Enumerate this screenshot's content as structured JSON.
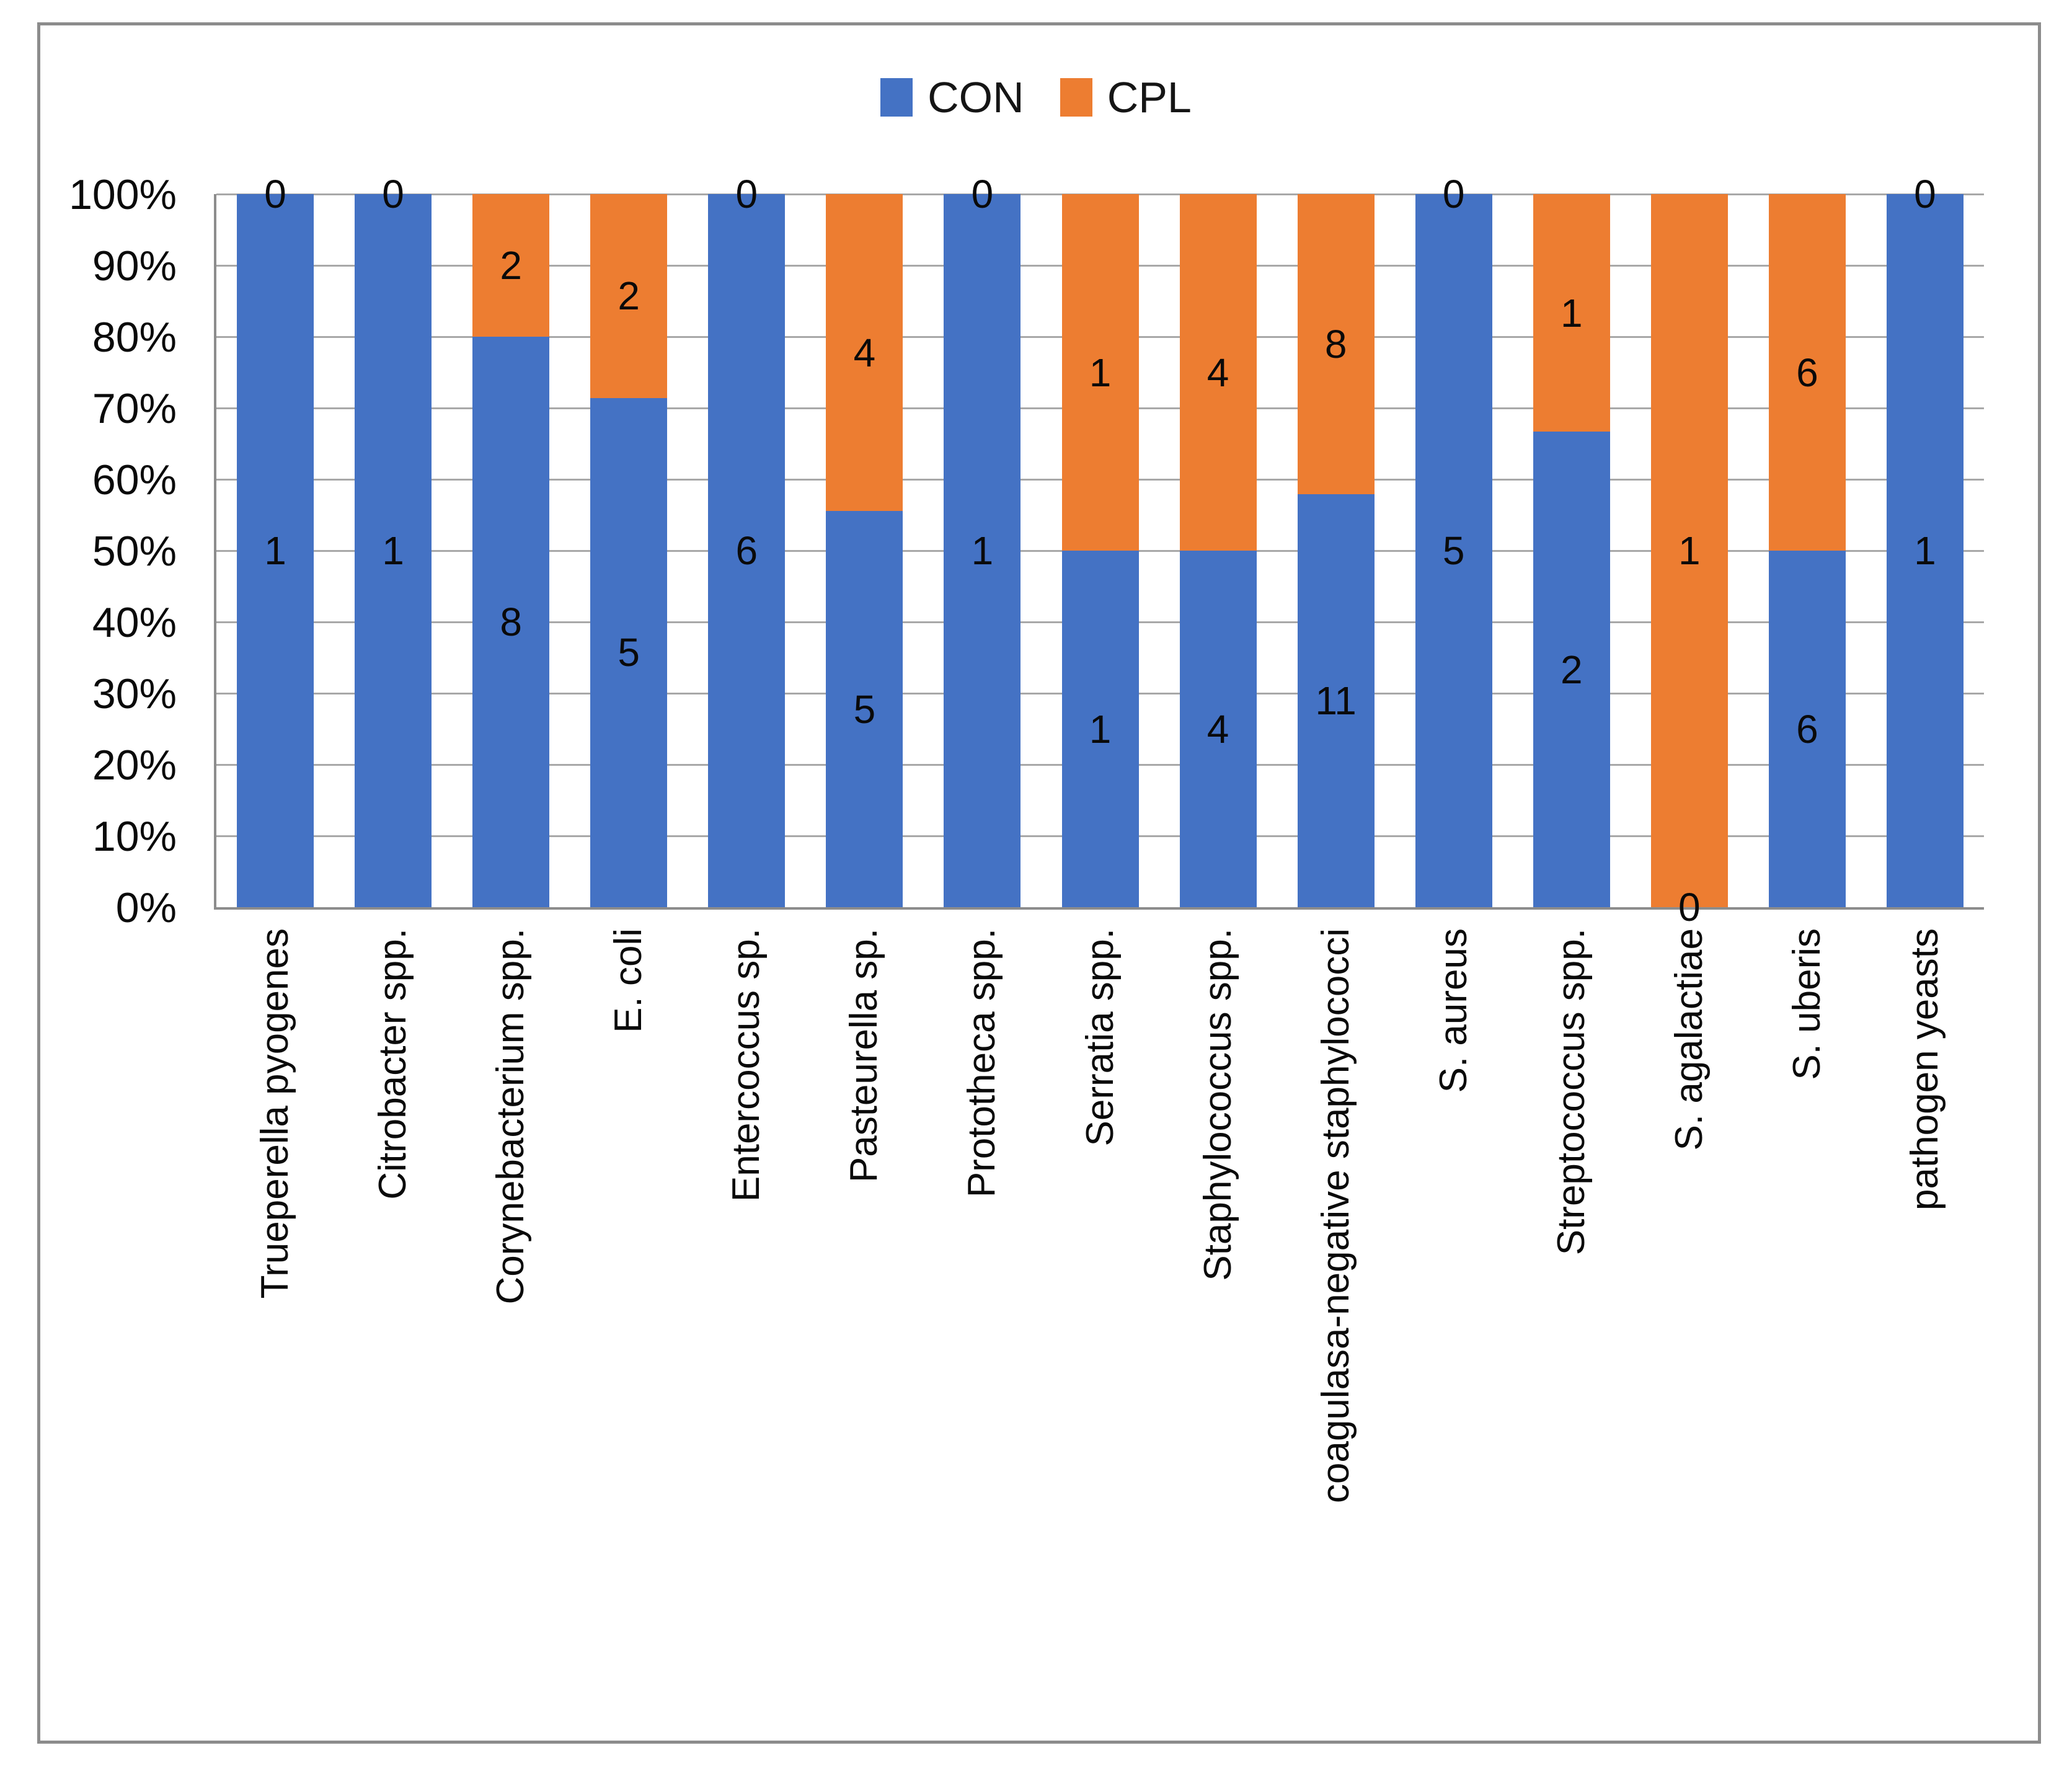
{
  "figure": {
    "background": "#ffffff",
    "border_color": "#8c8c8c"
  },
  "legend": {
    "position": "top",
    "items": [
      {
        "label": "CON",
        "color": "#4472C4"
      },
      {
        "label": "CPL",
        "color": "#ED7D31"
      }
    ]
  },
  "chart_data": {
    "type": "bar",
    "subtype": "stacked-100-percent",
    "title": "",
    "xlabel": "",
    "ylabel": "",
    "grid": true,
    "legend_position": "top",
    "data_labels": true,
    "categories": [
      "Trueperella pyogenes",
      "Citrobacter spp.",
      "Corynebacterium spp.",
      "E. coli",
      "Entercoccus sp.",
      "Pasteurella sp.",
      "Prototheca spp.",
      "Serratia spp.",
      "Staphylococcus spp.",
      "coagulasa-negative staphylococci",
      "S. aureus",
      "Streptococcus spp.",
      "S. agalactiae",
      "S. uberis",
      "pathogen yeasts"
    ],
    "series": [
      {
        "name": "CON",
        "color": "#4472C4",
        "values": [
          1,
          1,
          8,
          5,
          6,
          5,
          1,
          1,
          4,
          11,
          5,
          2,
          0,
          6,
          1
        ]
      },
      {
        "name": "CPL",
        "color": "#ED7D31",
        "values": [
          0,
          0,
          2,
          2,
          0,
          4,
          0,
          1,
          4,
          8,
          0,
          1,
          1,
          6,
          0
        ]
      }
    ],
    "y_axis": {
      "min": "0%",
      "max": "100%",
      "ticks": [
        "0%",
        "10%",
        "20%",
        "30%",
        "40%",
        "50%",
        "60%",
        "70%",
        "80%",
        "90%",
        "100%"
      ]
    }
  }
}
